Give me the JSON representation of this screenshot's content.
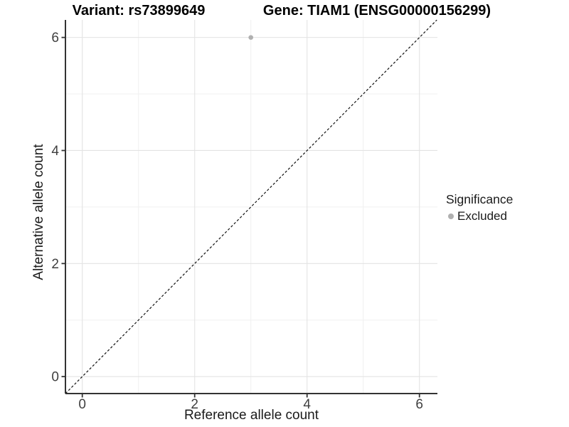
{
  "chart_data": {
    "type": "scatter",
    "title_variant": "Variant: rs73899649",
    "title_gene": "Gene: TIAM1 (ENSG00000156299)",
    "xlabel": "Reference allele count",
    "ylabel": "Alternative allele count",
    "xlim": [
      -0.3,
      6.32
    ],
    "ylim": [
      -0.3,
      6.31
    ],
    "xticks": [
      0,
      2,
      4,
      6
    ],
    "yticks": [
      0,
      2,
      4,
      6
    ],
    "minor_gridlines_x": [
      1,
      3,
      5
    ],
    "minor_gridlines_y": [
      1,
      3,
      5
    ],
    "grid": true,
    "identity_line": {
      "equation": "y = x",
      "style": "dashed",
      "color": "#111111"
    },
    "series": [
      {
        "name": "Excluded",
        "color": "#b0b0b0",
        "points": [
          {
            "x": 3,
            "y": 6
          }
        ]
      }
    ],
    "legend": {
      "title": "Significance",
      "position": "right",
      "items": [
        {
          "label": "Excluded",
          "color": "#b0b0b0"
        }
      ]
    }
  },
  "colors": {
    "background": "#ffffff",
    "grid_major": "#e3e3e3",
    "grid_minor": "#f0f0f0",
    "axis_line": "#333333",
    "tick_mark": "#333333",
    "tick_text": "#404040",
    "title_text": "#000000",
    "point": "#b0b0b0"
  }
}
